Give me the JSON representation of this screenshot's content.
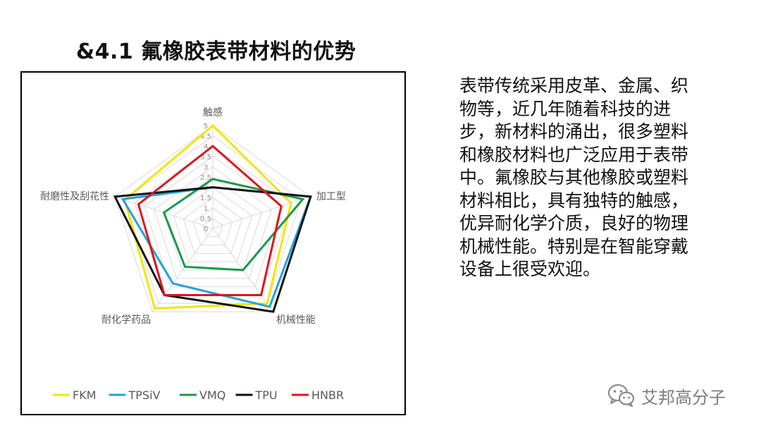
{
  "slide": {
    "title": "&4.1 氟橡胶表带材料的优势",
    "body_text": "表带传统采用皮革、金属、织物等，近几年随着科技的进步，新材料的涌出，很多塑料和橡胶材料也广泛应用于表带中。氟橡胶与其他橡胶或塑料材料相比，具有独特的触感，优异耐化学介质，良好的物理机械性能。特别是在智能穿戴设备上很受欢迎。",
    "watermark": "艾邦高分子",
    "watermark_icon": "wechat-icon"
  },
  "chart_data": {
    "type": "radar",
    "title": "",
    "axes": [
      "触感",
      "加工型",
      "机械性能",
      "耐化学药品",
      "耐磨性及刮花性"
    ],
    "scale": {
      "min": 0,
      "max": 5,
      "step": 0.5
    },
    "tick_labels": [
      "0",
      "0.5",
      "1",
      "1.5",
      "2",
      "2.5",
      "3",
      "3.5",
      "4",
      "4.5",
      "5"
    ],
    "grid": true,
    "legend_position": "bottom",
    "series": [
      {
        "name": "FKM",
        "color": "#f2e600",
        "values": [
          5,
          4,
          4.5,
          4.8,
          4.5
        ]
      },
      {
        "name": "TPSiV",
        "color": "#1fa3dc",
        "values": [
          2,
          5,
          4.7,
          3.3,
          4.6
        ]
      },
      {
        "name": "VMQ",
        "color": "#1a9a47",
        "values": [
          2.4,
          4.6,
          2.5,
          2.3,
          2.5
        ]
      },
      {
        "name": "TPU",
        "color": "#111111",
        "values": [
          2,
          5,
          5,
          4,
          5
        ]
      },
      {
        "name": "HNBR",
        "color": "#e0141c",
        "values": [
          4,
          3.5,
          4,
          4,
          3.8
        ]
      }
    ]
  }
}
